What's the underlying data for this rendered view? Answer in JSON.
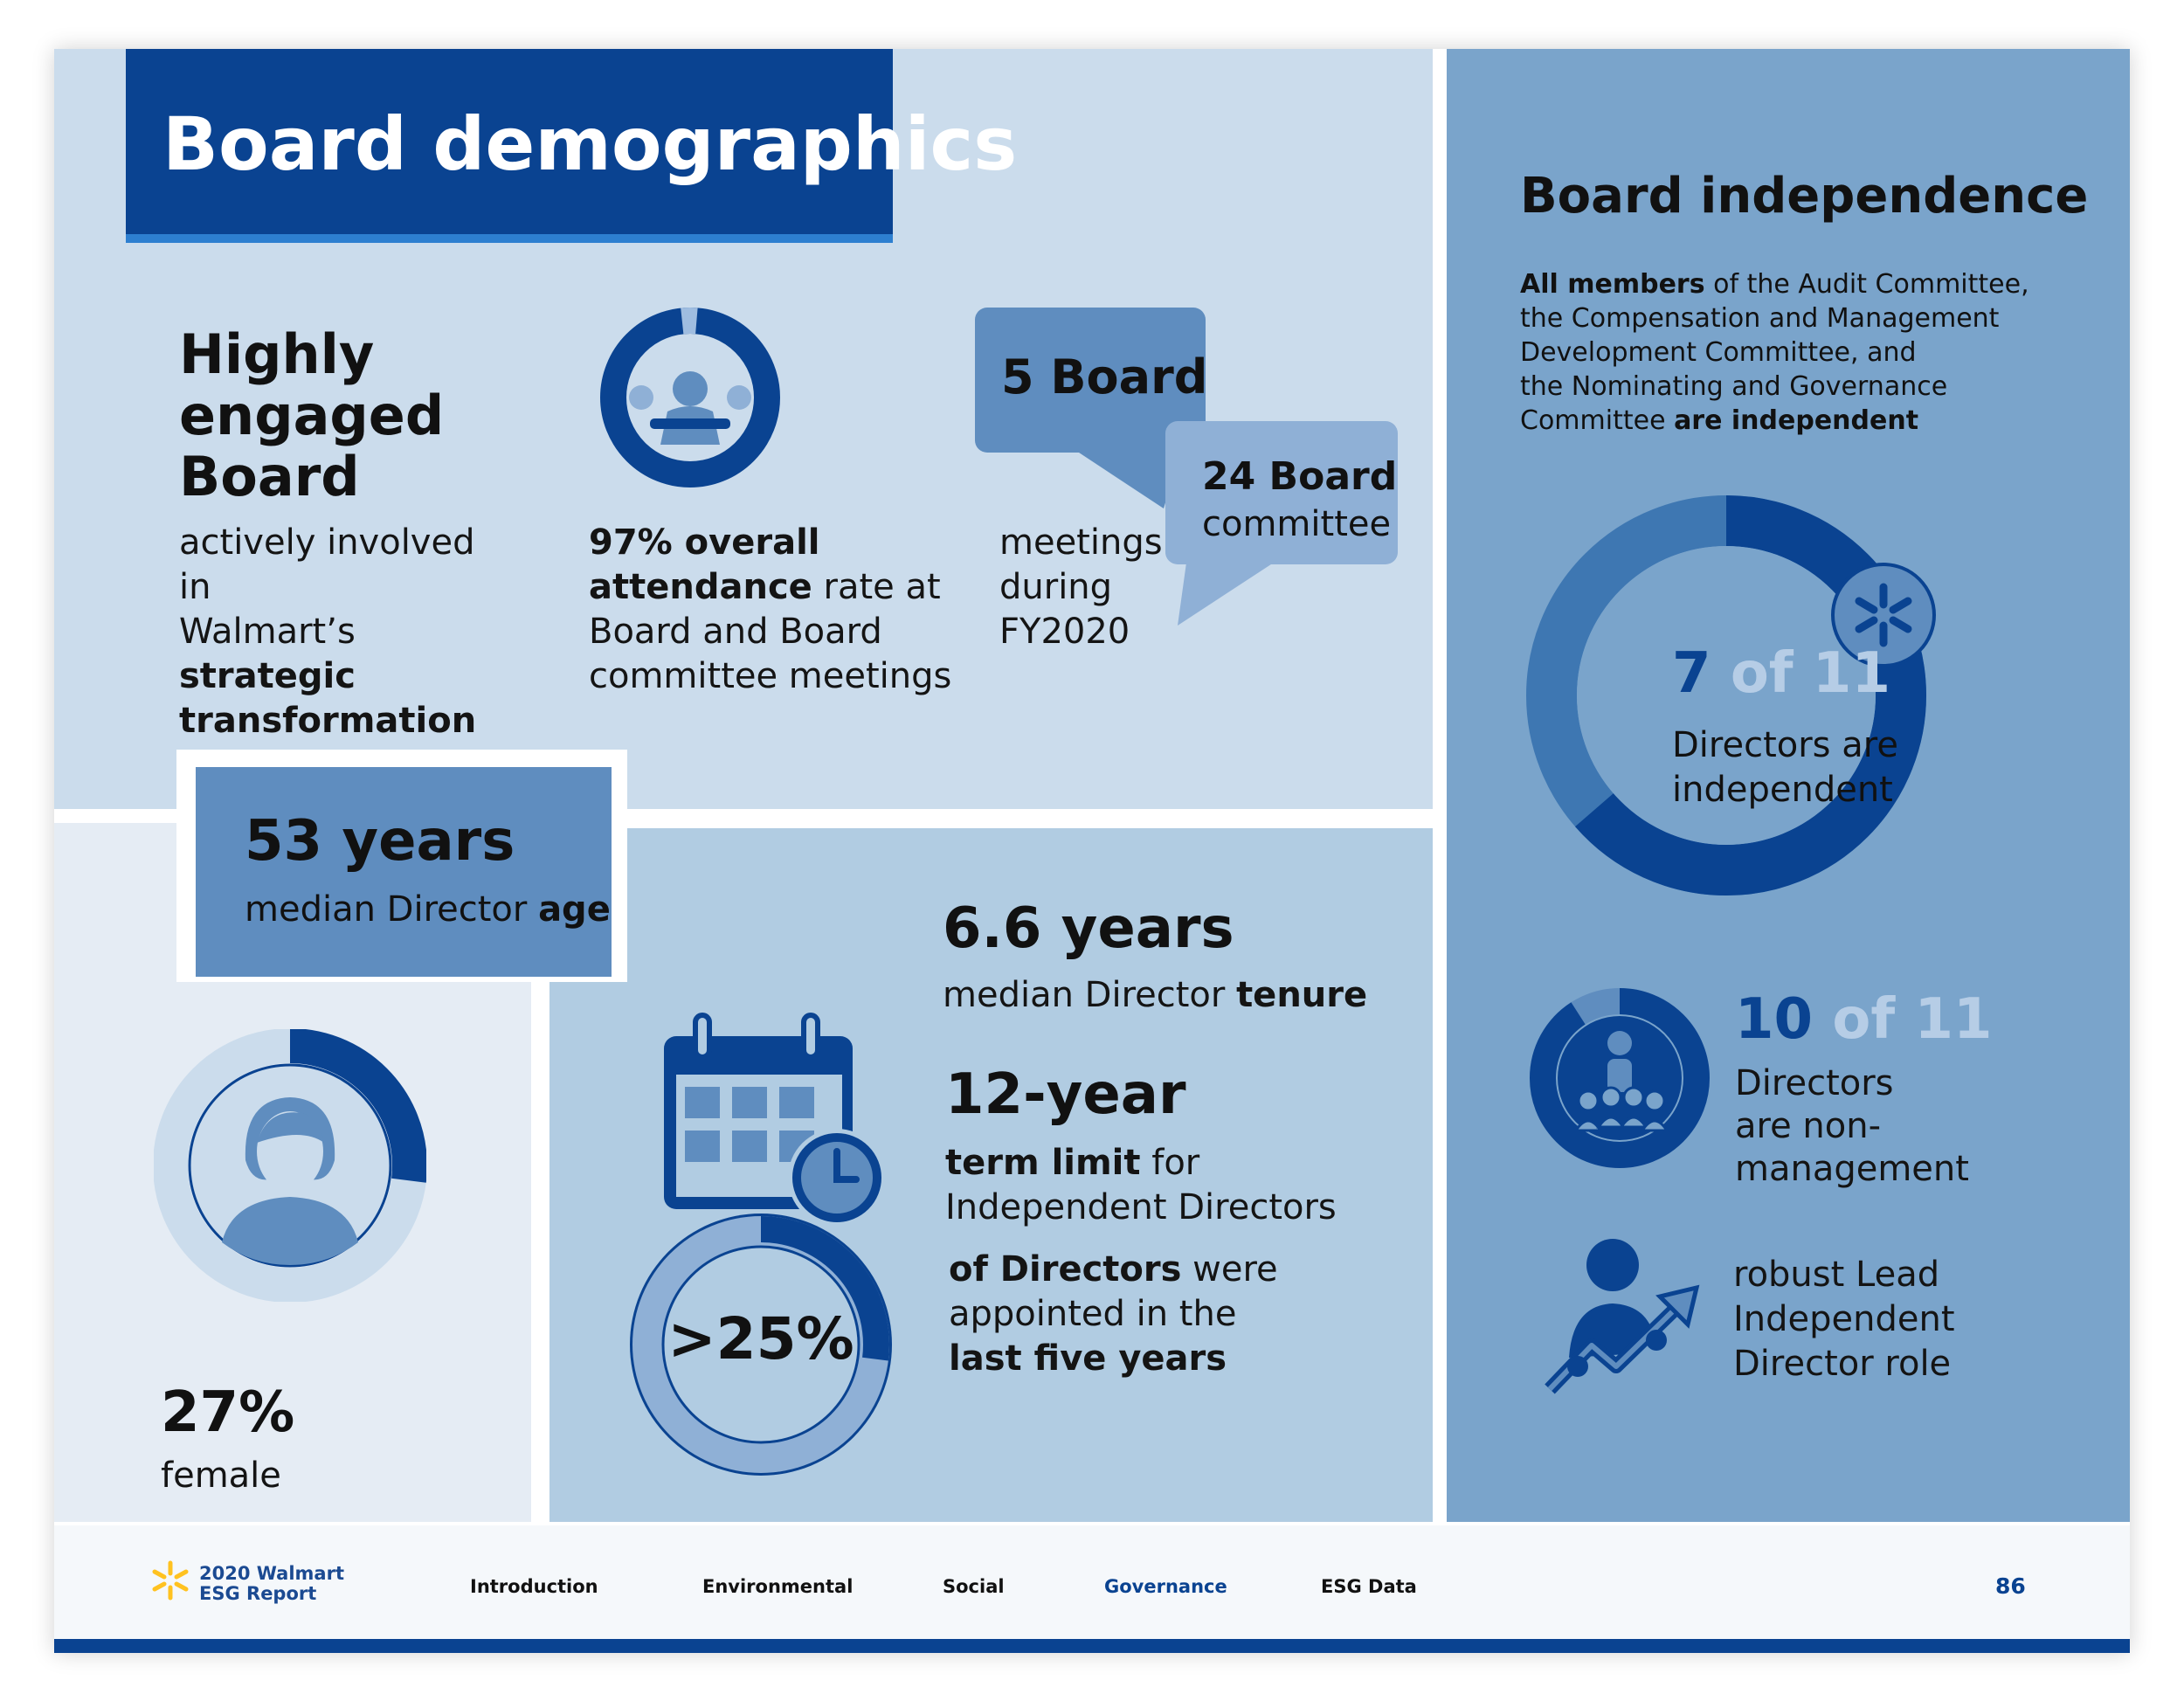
{
  "title": "Board demographics",
  "engaged": {
    "heading": "Highly engaged Board",
    "line1": "actively involved in",
    "line2_pre": "Walmart’s ",
    "line2_bold": "strategic",
    "line3_bold": "transformation"
  },
  "attendance": {
    "bold1": "97% overall",
    "bold2": "attendance",
    "rest2": " rate at",
    "line3": "Board and Board",
    "line4": "committee meetings",
    "ring_fraction": 0.97
  },
  "meetings": {
    "bubble1": "5 Board",
    "bubble2_bold": "24 Board",
    "bubble2_text": "committee",
    "line1": "meetings",
    "line2": "during",
    "line3": "FY2020"
  },
  "age": {
    "value": "53 years",
    "label_pre": "median Director ",
    "label_bold": "age"
  },
  "female": {
    "value": "27%",
    "label": "female",
    "ring_fraction": 0.27
  },
  "tenure": {
    "value": "6.6 years",
    "label_pre": "median Director ",
    "label_bold": "tenure"
  },
  "term": {
    "value": "12-year",
    "label_bold": "term limit",
    "label_rest": " for",
    "line2": "Independent Directors"
  },
  "appointed": {
    "value": ">25%",
    "line1_bold": "of Directors",
    "line1_rest": " were",
    "line2": "appointed in the",
    "line3_bold": "last five years",
    "ring_fraction": 0.27
  },
  "independence": {
    "heading": "Board independence",
    "d1_bold": "All members",
    "d1_rest": " of the Audit Committee,",
    "d2": "the Compensation and Management",
    "d3": "Development Committee, and",
    "d4": "the Nominating and Governance",
    "d5_pre": "Committee ",
    "d5_bold": "are independent",
    "ring_value": "7",
    "ring_of": " of 11",
    "ring_line1": "Directors are",
    "ring_line2": "independent",
    "ring_fraction": 0.636
  },
  "nonmgmt": {
    "value": "10",
    "of": " of 11",
    "line1": "Directors",
    "line2": "are non-",
    "line3": "management",
    "ring_fraction": 0.909
  },
  "lead": {
    "line1": "robust Lead",
    "line2": "Independent",
    "line3": "Director role"
  },
  "footer": {
    "brand_line1": "2020 Walmart",
    "brand_line2": "ESG Report",
    "nav": [
      "Introduction",
      "Environmental",
      "Social",
      "Governance",
      "ESG Data"
    ],
    "active": "Governance",
    "page_number": "86"
  },
  "colors": {
    "navy": "#0a4391",
    "mid_blue": "#5f8dbf",
    "light_blue": "#cbdcec",
    "spark_yellow": "#ffc220"
  }
}
